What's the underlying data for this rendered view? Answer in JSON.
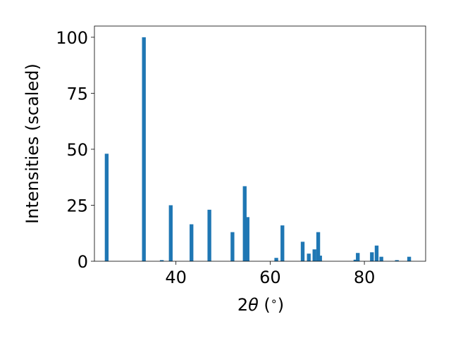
{
  "chart_data": {
    "type": "bar",
    "title": "",
    "xlabel_parts": [
      "2",
      "θ",
      " (",
      "∘",
      ")"
    ],
    "ylabel": "Intensities (scaled)",
    "xlim": [
      22.7,
      93.0
    ],
    "ylim": [
      0,
      105
    ],
    "x_ticks": [
      40,
      60,
      80
    ],
    "y_ticks": [
      0,
      25,
      50,
      75,
      100
    ],
    "grid": false,
    "legend": "none",
    "bar_color": "#1f77b4",
    "bar_width": 0.8,
    "series": [
      {
        "x": [
          25.3,
          33.2,
          37.0,
          38.9,
          43.3,
          47.1,
          52.0,
          54.6,
          55.2,
          61.3,
          62.6,
          66.9,
          68.2,
          69.4,
          70.2,
          70.6,
          78.1,
          78.6,
          81.6,
          82.6,
          83.6,
          86.9,
          89.5
        ],
        "values": [
          48,
          100,
          0.5,
          25,
          16.5,
          23,
          13,
          33.5,
          19.7,
          1.5,
          16,
          8.7,
          3.4,
          5.3,
          13,
          2.5,
          0.7,
          3.7,
          4,
          7,
          2,
          0.5,
          2
        ]
      }
    ]
  }
}
